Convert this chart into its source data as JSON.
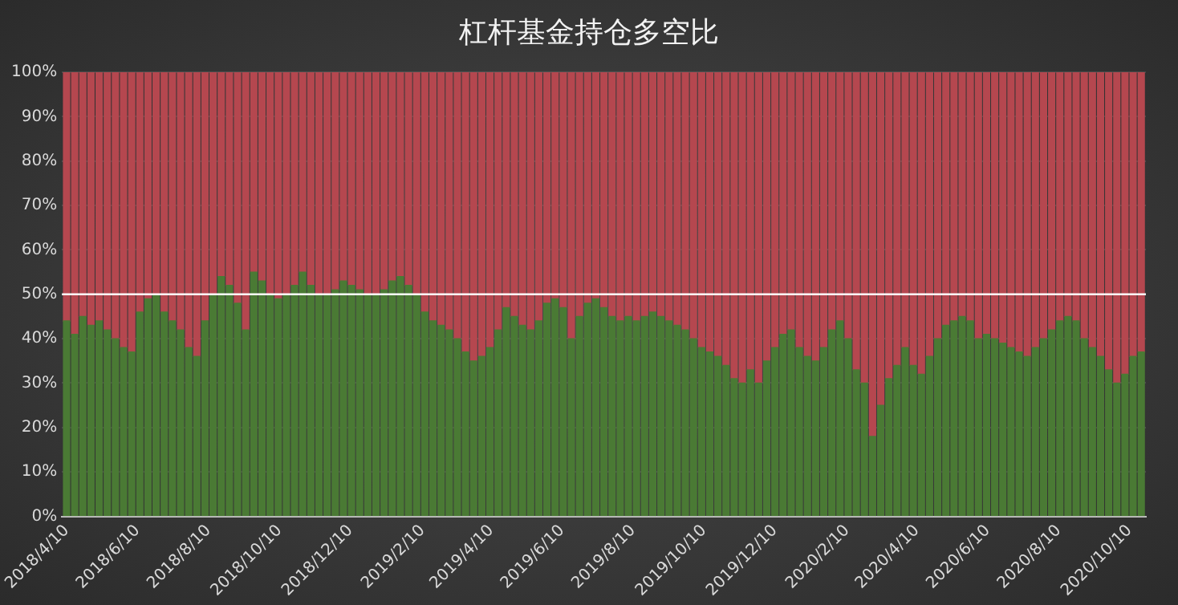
{
  "chart_data": {
    "type": "bar",
    "title": "杠杆基金持仓多空比",
    "stacked": true,
    "x": [
      "2018-04-10",
      "2018-04-17",
      "2018-04-24",
      "2018-05-01",
      "2018-05-08",
      "2018-05-15",
      "2018-05-22",
      "2018-05-29",
      "2018-06-05",
      "2018-06-12",
      "2018-06-19",
      "2018-06-26",
      "2018-07-03",
      "2018-07-10",
      "2018-07-17",
      "2018-07-24",
      "2018-07-31",
      "2018-08-07",
      "2018-08-14",
      "2018-08-21",
      "2018-08-28",
      "2018-09-04",
      "2018-09-11",
      "2018-09-18",
      "2018-09-25",
      "2018-10-02",
      "2018-10-09",
      "2018-10-16",
      "2018-10-23",
      "2018-10-30",
      "2018-11-06",
      "2018-11-13",
      "2018-11-20",
      "2018-11-27",
      "2018-12-04",
      "2018-12-11",
      "2018-12-18",
      "2018-12-25",
      "2019-01-01",
      "2019-01-08",
      "2019-01-15",
      "2019-01-22",
      "2019-01-29",
      "2019-02-05",
      "2019-02-12",
      "2019-02-19",
      "2019-02-26",
      "2019-03-05",
      "2019-03-12",
      "2019-03-19",
      "2019-03-26",
      "2019-04-02",
      "2019-04-09",
      "2019-04-16",
      "2019-04-23",
      "2019-04-30",
      "2019-05-07",
      "2019-05-14",
      "2019-05-21",
      "2019-05-28",
      "2019-06-04",
      "2019-06-11",
      "2019-06-18",
      "2019-06-25",
      "2019-07-02",
      "2019-07-09",
      "2019-07-16",
      "2019-07-23",
      "2019-07-30",
      "2019-08-06",
      "2019-08-13",
      "2019-08-20",
      "2019-08-27",
      "2019-09-03",
      "2019-09-10",
      "2019-09-17",
      "2019-09-24",
      "2019-10-01",
      "2019-10-08",
      "2019-10-15",
      "2019-10-22",
      "2019-10-29",
      "2019-11-05",
      "2019-11-12",
      "2019-11-19",
      "2019-11-26",
      "2019-12-03",
      "2019-12-10",
      "2019-12-17",
      "2019-12-24",
      "2019-12-31",
      "2020-01-07",
      "2020-01-14",
      "2020-01-21",
      "2020-01-28",
      "2020-02-04",
      "2020-02-11",
      "2020-02-18",
      "2020-02-25",
      "2020-03-03",
      "2020-03-10",
      "2020-03-17",
      "2020-03-24",
      "2020-03-31",
      "2020-04-07",
      "2020-04-14",
      "2020-04-21",
      "2020-04-28",
      "2020-05-05",
      "2020-05-12",
      "2020-05-19",
      "2020-05-26",
      "2020-06-02",
      "2020-06-09",
      "2020-06-16",
      "2020-06-23",
      "2020-06-30",
      "2020-07-07",
      "2020-07-14",
      "2020-07-21",
      "2020-07-28",
      "2020-08-04",
      "2020-08-11",
      "2020-08-18",
      "2020-08-25",
      "2020-09-01",
      "2020-09-08",
      "2020-09-15",
      "2020-09-22",
      "2020-09-29",
      "2020-10-06",
      "2020-10-13",
      "2020-10-20"
    ],
    "series": [
      {
        "color": "#4a7a34",
        "values": [
          44,
          41,
          45,
          43,
          44,
          42,
          40,
          38,
          37,
          46,
          49,
          50,
          46,
          44,
          42,
          38,
          36,
          44,
          50,
          54,
          52,
          48,
          42,
          55,
          53,
          50,
          49,
          50,
          52,
          55,
          52,
          50,
          50,
          51,
          53,
          52,
          51,
          50,
          50,
          51,
          53,
          54,
          52,
          50,
          46,
          44,
          43,
          42,
          40,
          37,
          35,
          36,
          38,
          42,
          47,
          45,
          43,
          42,
          44,
          48,
          49,
          47,
          40,
          45,
          48,
          49,
          47,
          45,
          44,
          45,
          44,
          45,
          46,
          45,
          44,
          43,
          42,
          40,
          38,
          37,
          36,
          34,
          31,
          30,
          33,
          30,
          35,
          38,
          41,
          42,
          38,
          36,
          35,
          38,
          42,
          44,
          40,
          33,
          30,
          18,
          25,
          31,
          34,
          38,
          34,
          32,
          36,
          40,
          43,
          44,
          45,
          44,
          40,
          41,
          40,
          39,
          38,
          37,
          36,
          38,
          40,
          42,
          44,
          45,
          44,
          40,
          38,
          36,
          33,
          30,
          32,
          36,
          37
        ]
      },
      {
        "color": "#b5474f",
        "values": [
          56,
          59,
          55,
          57,
          56,
          58,
          60,
          62,
          63,
          54,
          51,
          50,
          54,
          56,
          58,
          62,
          64,
          56,
          50,
          46,
          48,
          52,
          58,
          45,
          47,
          50,
          51,
          50,
          48,
          45,
          48,
          50,
          50,
          49,
          47,
          48,
          49,
          50,
          50,
          49,
          47,
          46,
          48,
          50,
          54,
          56,
          57,
          58,
          60,
          63,
          65,
          64,
          62,
          58,
          53,
          55,
          57,
          58,
          56,
          52,
          51,
          53,
          60,
          55,
          52,
          51,
          53,
          55,
          56,
          55,
          56,
          55,
          54,
          55,
          56,
          57,
          58,
          60,
          62,
          63,
          64,
          66,
          69,
          70,
          67,
          70,
          65,
          62,
          59,
          58,
          62,
          64,
          65,
          62,
          58,
          56,
          60,
          67,
          70,
          82,
          75,
          69,
          66,
          62,
          66,
          68,
          64,
          60,
          57,
          56,
          55,
          56,
          60,
          59,
          60,
          61,
          62,
          63,
          64,
          62,
          60,
          58,
          56,
          55,
          56,
          60,
          62,
          64,
          67,
          70,
          68,
          64,
          63
        ]
      }
    ],
    "xlim": [
      "2018-04-06",
      "2020-10-24"
    ],
    "xticks": [
      {
        "value": "2018-04-10",
        "label": "2018/4/10"
      },
      {
        "value": "2018-06-10",
        "label": "2018/6/10"
      },
      {
        "value": "2018-08-10",
        "label": "2018/8/10"
      },
      {
        "value": "2018-10-10",
        "label": "2018/10/10"
      },
      {
        "value": "2018-12-10",
        "label": "2018/12/10"
      },
      {
        "value": "2019-02-10",
        "label": "2019/2/10"
      },
      {
        "value": "2019-04-10",
        "label": "2019/4/10"
      },
      {
        "value": "2019-06-10",
        "label": "2019/6/10"
      },
      {
        "value": "2019-08-10",
        "label": "2019/8/10"
      },
      {
        "value": "2019-10-10",
        "label": "2019/10/10"
      },
      {
        "value": "2019-12-10",
        "label": "2019/12/10"
      },
      {
        "value": "2020-02-10",
        "label": "2020/2/10"
      },
      {
        "value": "2020-04-10",
        "label": "2020/4/10"
      },
      {
        "value": "2020-06-10",
        "label": "2020/6/10"
      },
      {
        "value": "2020-08-10",
        "label": "2020/8/10"
      },
      {
        "value": "2020-10-10",
        "label": "2020/10/10"
      }
    ],
    "ylim": [
      0,
      100
    ],
    "yticks": [
      {
        "value": 0,
        "label": "0%"
      },
      {
        "value": 10,
        "label": "10%"
      },
      {
        "value": 20,
        "label": "20%"
      },
      {
        "value": 30,
        "label": "30%"
      },
      {
        "value": 40,
        "label": "40%"
      },
      {
        "value": 50,
        "label": "50%"
      },
      {
        "value": 60,
        "label": "60%"
      },
      {
        "value": 70,
        "label": "70%"
      },
      {
        "value": 80,
        "label": "80%"
      },
      {
        "value": 90,
        "label": "90%"
      },
      {
        "value": 100,
        "label": "100%"
      }
    ],
    "ref_lines": [
      {
        "axis": "y",
        "value": 50,
        "color": "#ffffff"
      }
    ],
    "grid": "y",
    "legend": false
  }
}
